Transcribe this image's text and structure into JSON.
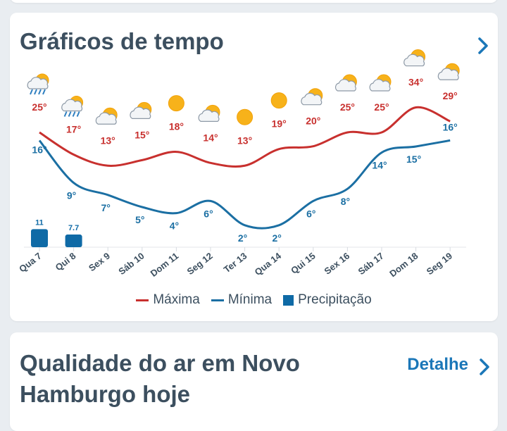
{
  "weather_section": {
    "title": "Gráficos de tempo",
    "legend": {
      "max_label": "Máxima",
      "min_label": "Mínima",
      "precip_label": "Precipitação"
    }
  },
  "air_section": {
    "title": "Qualidade do ar em Novo Hamburgo hoje",
    "link_label": "Detalhe"
  },
  "colors": {
    "max": "#c8302e",
    "min": "#1b6fa3",
    "precip": "#0f6aa6",
    "title": "#3c4f5f",
    "link": "#1b77b8"
  },
  "chart_data": {
    "type": "line",
    "categories": [
      "Qua 7",
      "Qui 8",
      "Sex 9",
      "Sáb 10",
      "Dom 11",
      "Seg 12",
      "Ter 13",
      "Qua 14",
      "Qui 15",
      "Sex 16",
      "Sáb 17",
      "Dom 18",
      "Seg 19"
    ],
    "series": [
      {
        "name": "Máxima",
        "values": [
          25,
          17,
          13,
          15,
          18,
          14,
          13,
          19,
          20,
          25,
          25,
          34,
          29
        ],
        "labels": [
          "25°",
          "17°",
          "13°",
          "15°",
          "18°",
          "14°",
          "13°",
          "19°",
          "20°",
          "25°",
          "25°",
          "34°",
          "29°"
        ]
      },
      {
        "name": "Mínima",
        "values": [
          16,
          9,
          7,
          5,
          4,
          6,
          2,
          2,
          6,
          8,
          14,
          15,
          16
        ],
        "labels": [
          "16°",
          "9°",
          "7°",
          "5°",
          "4°",
          "6°",
          "2°",
          "2°",
          "6°",
          "8°",
          "14°",
          "15°",
          "16°"
        ]
      },
      {
        "name": "Precipitação",
        "type": "bar",
        "values": [
          11,
          7.7,
          0,
          0,
          0,
          0,
          0,
          0,
          0,
          0,
          0,
          0,
          0
        ],
        "labels": [
          "11",
          "7.7",
          "",
          "",
          "",
          "",
          "",
          "",
          "",
          "",
          "",
          "",
          ""
        ]
      }
    ],
    "icons": [
      "rain-cloud-sun-icon",
      "rain-cloud-sun-icon",
      "partly-cloudy-icon",
      "partly-cloudy-icon",
      "sun-icon",
      "partly-cloudy-icon",
      "sun-icon",
      "sun-icon",
      "partly-cloudy-icon",
      "partly-cloudy-icon",
      "partly-cloudy-icon",
      "partly-cloudy-icon",
      "partly-cloudy-icon"
    ],
    "legend_position": "bottom"
  }
}
